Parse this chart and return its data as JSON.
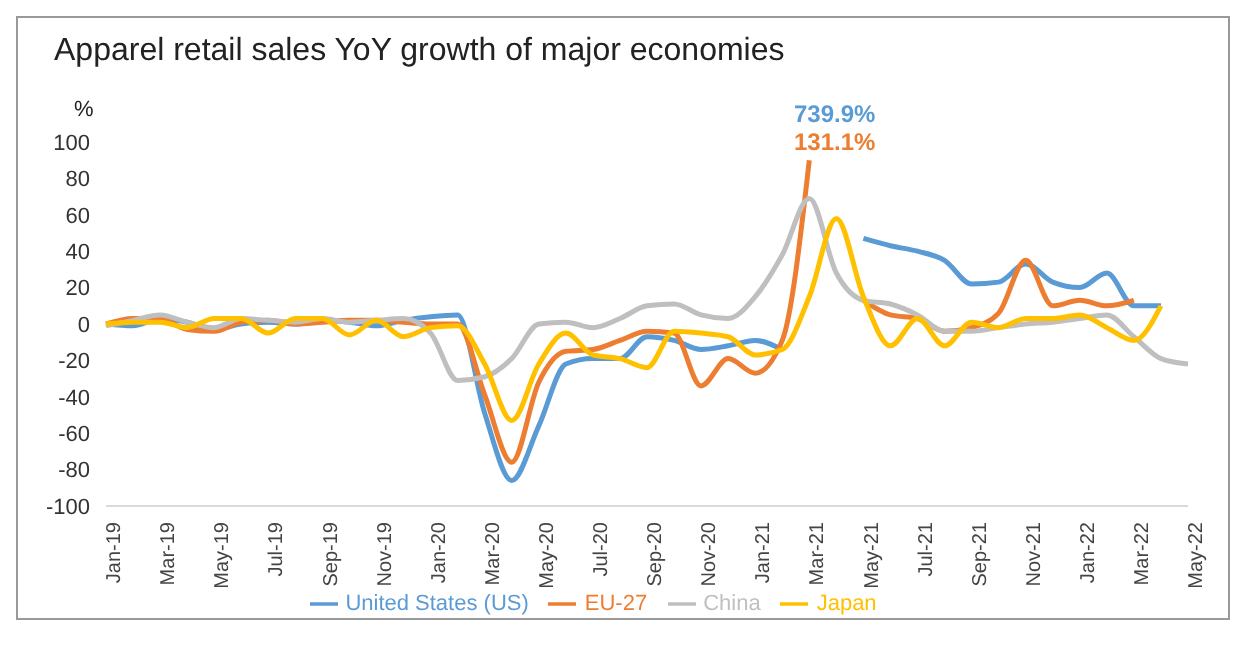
{
  "chart_data": {
    "type": "line",
    "title": "Apparel retail sales YoY growth of major economies",
    "ylabel": "%",
    "categories": [
      "Jan-19",
      null,
      "Mar-19",
      null,
      "May-19",
      null,
      "Jul-19",
      null,
      "Sep-19",
      null,
      "Nov-19",
      null,
      "Jan-20",
      null,
      "Mar-20",
      null,
      "May-20",
      null,
      "Jul-20",
      null,
      "Sep-20",
      null,
      "Nov-20",
      null,
      "Jan-21",
      null,
      "Mar-21",
      null,
      "May-21",
      null,
      "Jul-21",
      null,
      "Sep-21",
      null,
      "Nov-21",
      null,
      "Jan-22",
      null,
      "Mar-22",
      null,
      "May-22"
    ],
    "series": [
      {
        "name": "United States (US)",
        "color": "#5b9bd5",
        "values": [
          0,
          -1,
          3,
          1,
          -3,
          0,
          1,
          0,
          2,
          1,
          -1,
          2,
          4,
          5,
          -49,
          -86,
          -56,
          -22,
          -19,
          -19,
          -7,
          -9,
          -14,
          -12,
          -9,
          -14,
          null,
          null,
          47,
          43,
          40,
          35,
          22,
          23,
          33,
          23,
          20,
          28,
          10,
          10,
          null
        ]
      },
      {
        "name": "EU-27",
        "color": "#ed7d31",
        "values": [
          0,
          3,
          3,
          -3,
          -4,
          1,
          2,
          0,
          1,
          2,
          2,
          1,
          0,
          0,
          -39,
          -76,
          -32,
          -15,
          -14,
          -9,
          -4,
          -5,
          -34,
          -19,
          -27,
          -9,
          90,
          null,
          13,
          5,
          3,
          -4,
          -2,
          6,
          35,
          10,
          13,
          10,
          13,
          null,
          null
        ]
      },
      {
        "name": "China",
        "color": "#bfbfbf",
        "values": [
          -1,
          2,
          5,
          1,
          -2,
          3,
          2,
          1,
          3,
          1,
          2,
          3,
          -5,
          -31,
          -29,
          -19,
          0,
          1,
          -2,
          3,
          10,
          11,
          5,
          3,
          15,
          38,
          69,
          28,
          13,
          11,
          5,
          -4,
          -4,
          -2,
          0,
          1,
          3,
          5,
          -7,
          -19,
          -22
        ]
      },
      {
        "name": "Japan",
        "color": "#ffc000",
        "values": [
          0,
          1,
          1,
          -2,
          3,
          3,
          -5,
          3,
          3,
          -6,
          2,
          -7,
          -2,
          -1,
          -22,
          -53,
          -22,
          -5,
          -17,
          -19,
          -24,
          -4,
          -5,
          -7,
          -17,
          -14,
          15,
          58,
          15,
          -12,
          3,
          -12,
          1,
          -2,
          3,
          3,
          5,
          -2,
          -9,
          10,
          null
        ]
      }
    ],
    "annotations": [
      "739.9%",
      "131.1%"
    ],
    "ylim": [
      -100,
      100
    ],
    "yticks": [
      -100,
      -80,
      -60,
      -40,
      -20,
      0,
      20,
      40,
      60,
      80,
      100
    ],
    "grid": false,
    "legend": "bottom",
    "marker": "none",
    "line_style": "solid"
  }
}
